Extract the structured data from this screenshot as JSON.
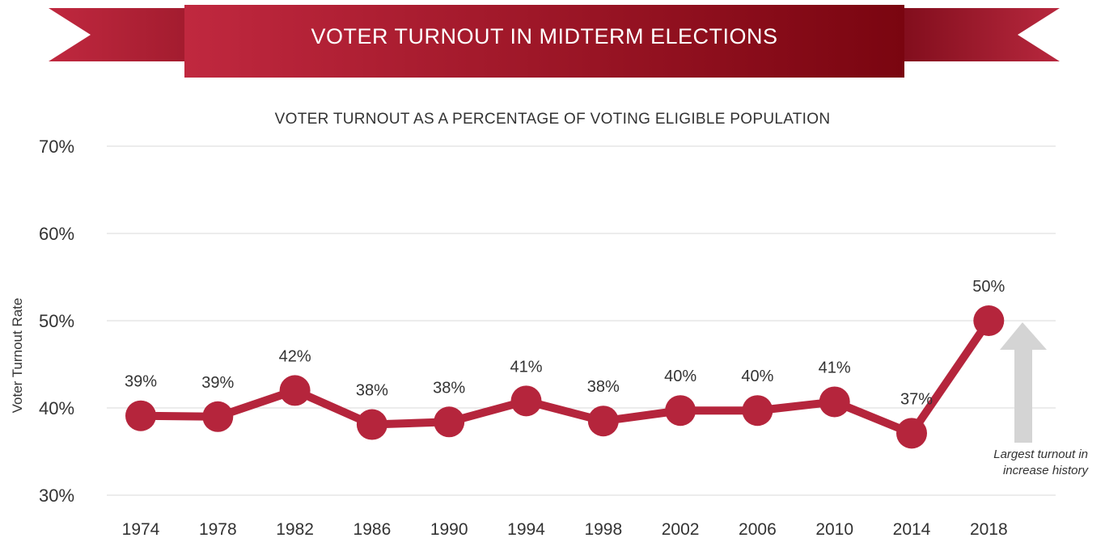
{
  "banner": {
    "title": "VOTER TURNOUT IN MIDTERM ELECTIONS"
  },
  "colors": {
    "primary": "#b5253c",
    "primary_dark": "#8a0a18",
    "arrow": "#d4d4d4",
    "grid": "#d9d9d9"
  },
  "chart_data": {
    "type": "line",
    "title": "VOTER TURNOUT IN MIDTERM ELECTIONS",
    "subtitle": "VOTER TURNOUT AS A PERCENTAGE OF VOTING ELIGIBLE POPULATION",
    "ylabel": "Voter Turnout Rate",
    "xlabel": "",
    "categories": [
      "1974",
      "1978",
      "1982",
      "1986",
      "1990",
      "1994",
      "1998",
      "2002",
      "2006",
      "2010",
      "2014",
      "2018"
    ],
    "values": [
      39.1,
      39.0,
      42.0,
      38.1,
      38.4,
      40.8,
      38.5,
      39.7,
      39.7,
      40.7,
      37.1,
      50.0
    ],
    "data_labels": [
      "39%",
      "39%",
      "42%",
      "38%",
      "38%",
      "41%",
      "38%",
      "40%",
      "40%",
      "41%",
      "37%",
      "50%"
    ],
    "ylim": [
      30,
      70
    ],
    "yticks": [
      30,
      40,
      50,
      60,
      70
    ],
    "ytick_labels": [
      "30%",
      "40%",
      "50%",
      "60%",
      "70%"
    ],
    "grid": true,
    "annotation": {
      "line1": "Largest turnout in",
      "line2": "increase history"
    }
  }
}
